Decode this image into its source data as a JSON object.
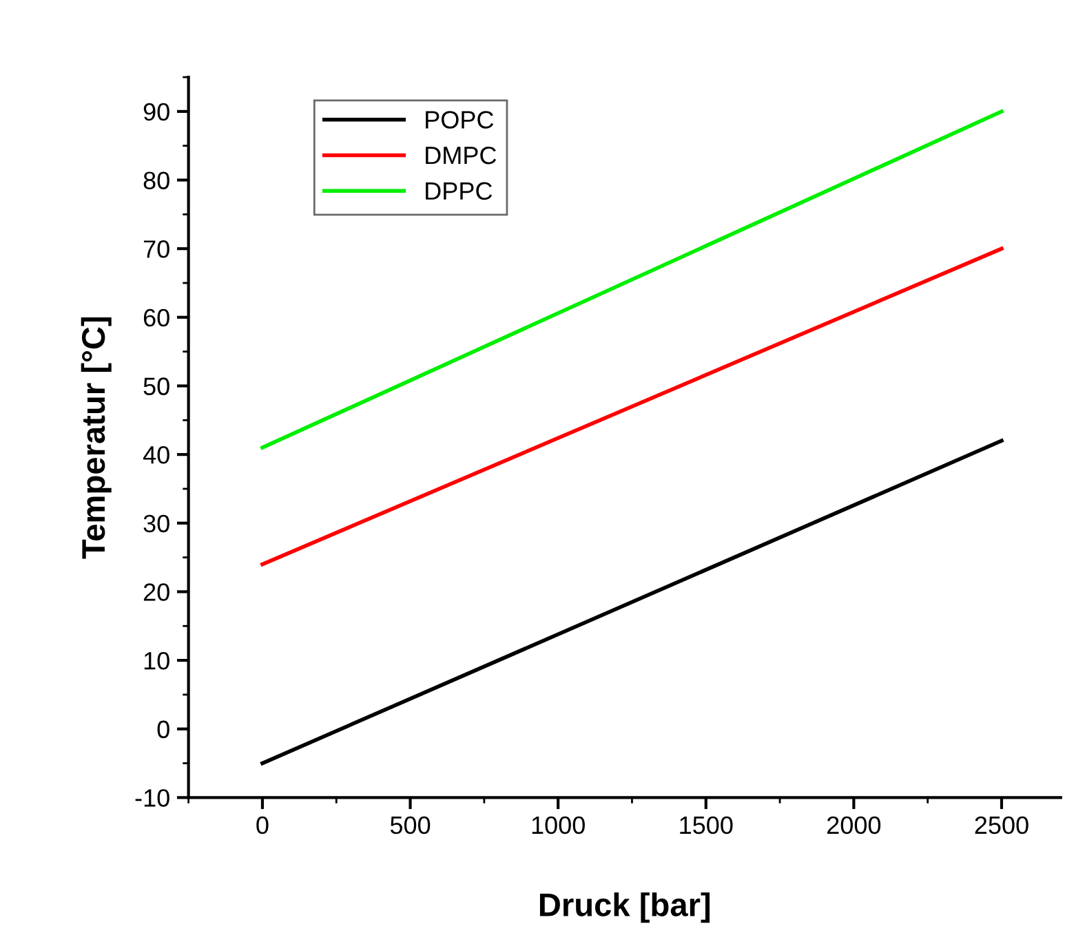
{
  "chart_data": {
    "type": "line",
    "xlabel": "Druck [bar]",
    "ylabel": "Temperatur [°C]",
    "x": [
      0,
      2500
    ],
    "series": [
      {
        "name": "POPC",
        "color": "#000000",
        "values": [
          -5,
          42
        ]
      },
      {
        "name": "DMPC",
        "color": "#ff0000",
        "values": [
          24,
          70
        ]
      },
      {
        "name": "DPPC",
        "color": "#00ee00",
        "values": [
          41,
          90
        ]
      }
    ],
    "xlim": [
      -250,
      2700
    ],
    "xticks": [
      0,
      500,
      1000,
      1500,
      2000,
      2500
    ],
    "ylim": [
      -10,
      95
    ],
    "yticks": [
      -10,
      0,
      10,
      20,
      30,
      40,
      50,
      60,
      70,
      80,
      90
    ],
    "grid": false,
    "legend": "top left",
    "marker": "none",
    "line_style": "solid"
  }
}
